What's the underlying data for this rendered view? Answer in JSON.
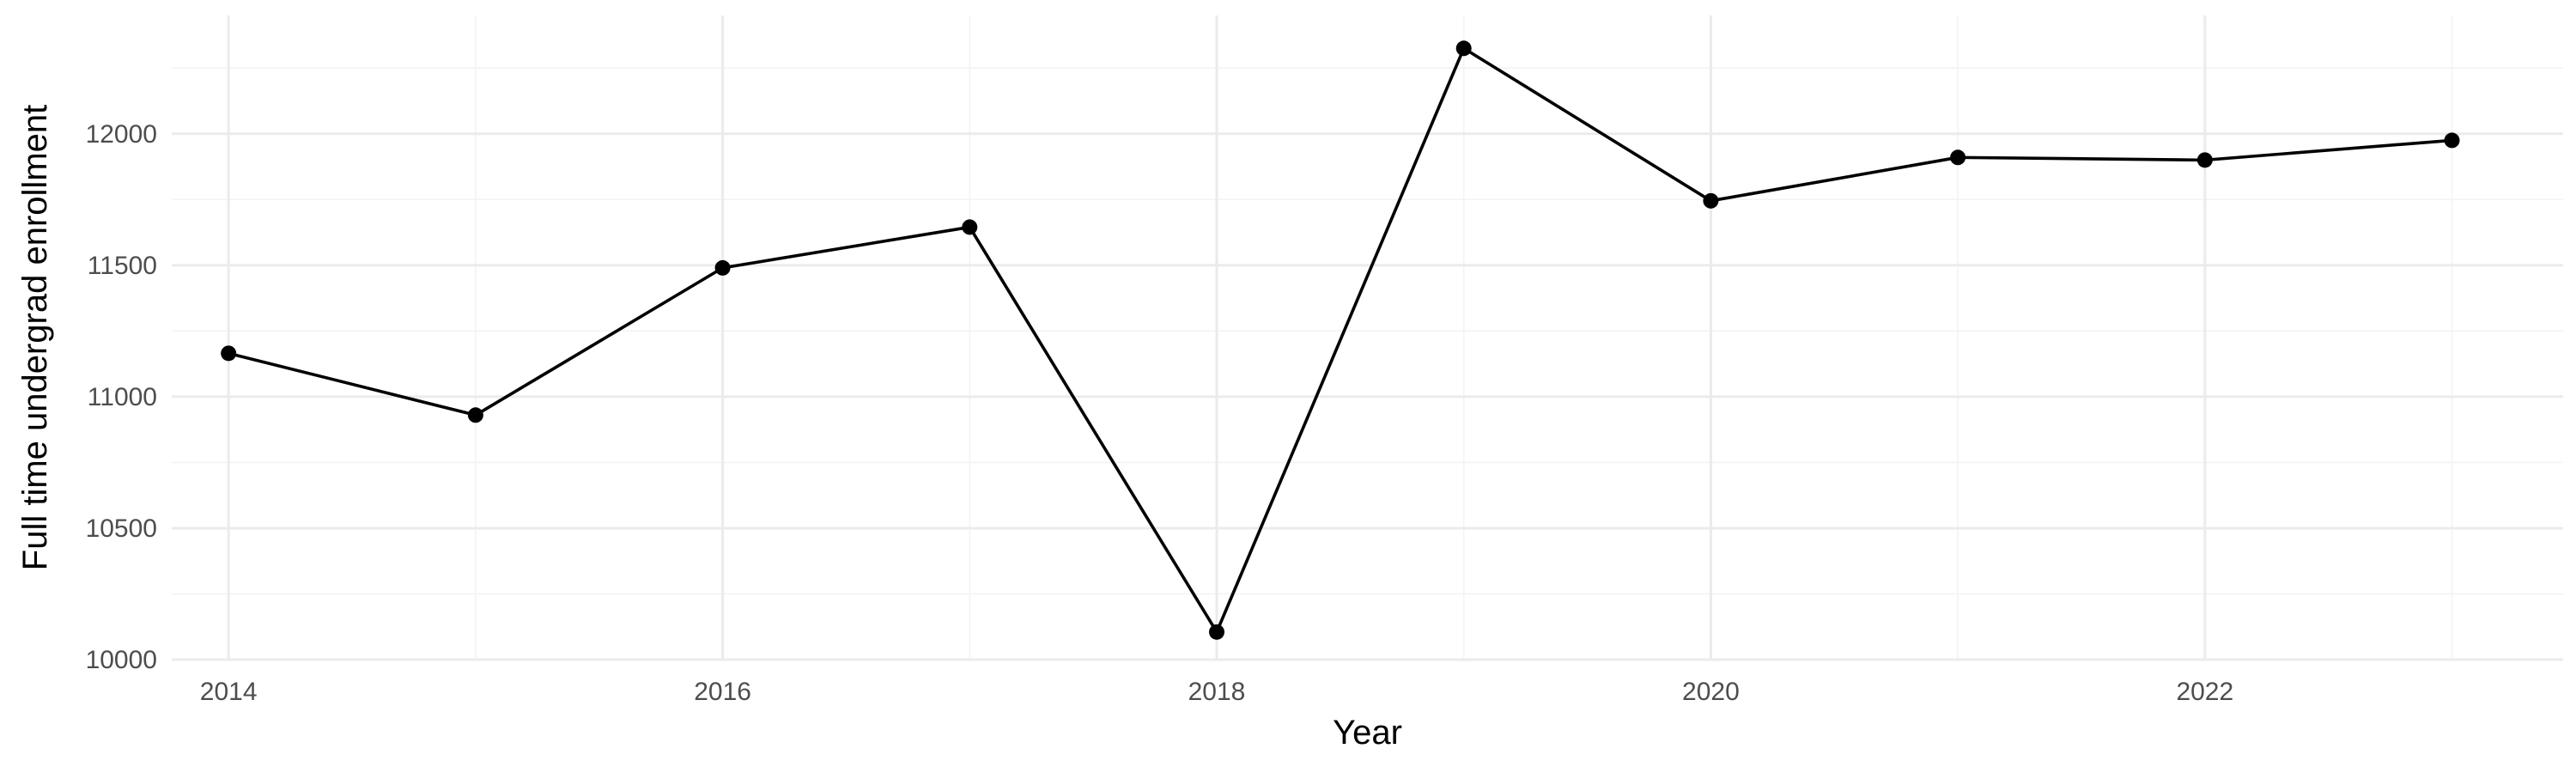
{
  "chart_data": {
    "type": "line",
    "xlabel": "Year",
    "ylabel": "Full time undergrad enrollment",
    "xlim": [
      2013.77,
      2023.45
    ],
    "ylim": [
      10000,
      12450
    ],
    "x_major_ticks": [
      2014,
      2016,
      2018,
      2020,
      2022
    ],
    "x_minor_ticks": [
      2015,
      2017,
      2019,
      2021,
      2023
    ],
    "y_major_ticks": [
      10000,
      10500,
      11000,
      11500,
      12000
    ],
    "y_minor_ticks": [
      10250,
      10750,
      11250,
      11750,
      12250
    ],
    "grid": true,
    "series": [
      {
        "x": [
          2014,
          2015,
          2016,
          2017,
          2018,
          2019,
          2020,
          2021,
          2022,
          2023
        ],
        "y": [
          11165,
          10930,
          11490,
          11645,
          10105,
          12325,
          11745,
          11910,
          11900,
          11975
        ]
      }
    ]
  }
}
